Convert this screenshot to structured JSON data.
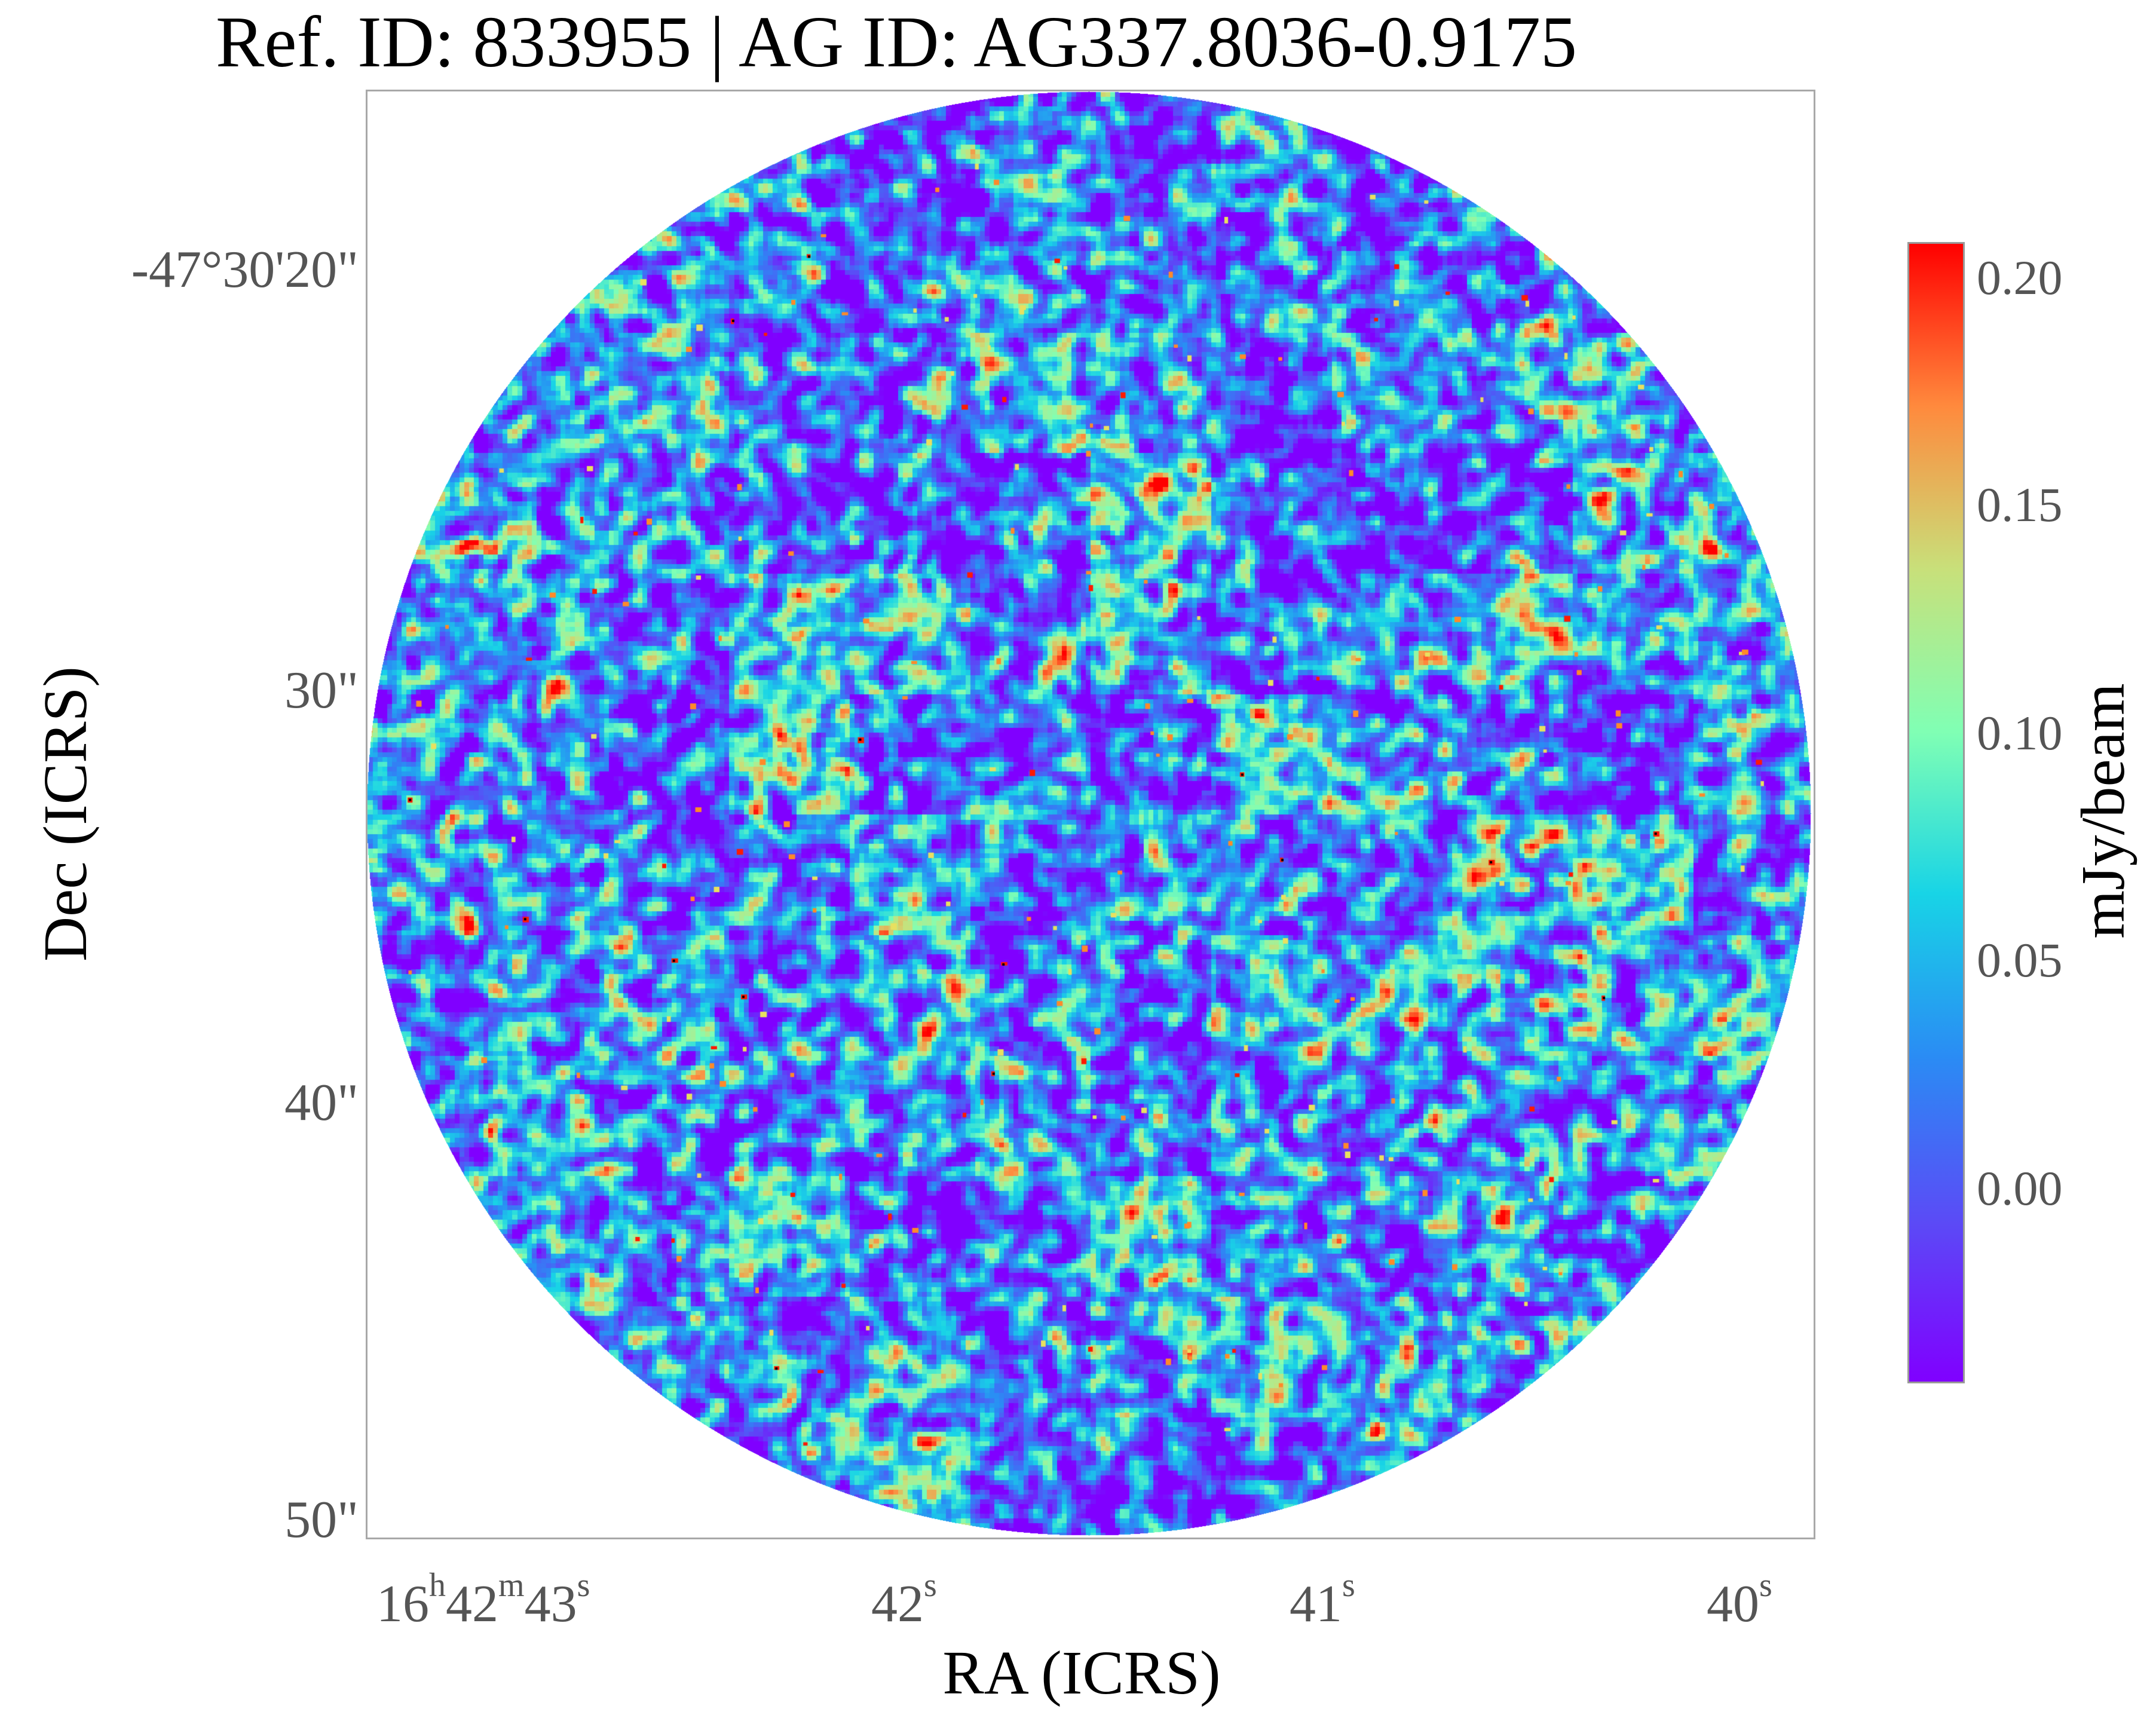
{
  "title": "Ref. ID: 833955 | AG ID: AG337.8036-0.9175",
  "x_axis": {
    "label": "RA (ICRS)",
    "ticks": [
      {
        "h": "16",
        "h_unit": "h",
        "m": "42",
        "m_unit": "m",
        "s": "43",
        "s_unit": "s"
      },
      {
        "s": "42",
        "s_unit": "s"
      },
      {
        "s": "41",
        "s_unit": "s"
      },
      {
        "s": "40",
        "s_unit": "s"
      }
    ]
  },
  "y_axis": {
    "label": "Dec (ICRS)",
    "ticks": [
      "-47°30'20\"",
      "30\"",
      "40\"",
      "50\""
    ]
  },
  "colorbar": {
    "label": "mJy/beam",
    "ticks": [
      "0.20",
      "0.15",
      "0.10",
      "0.05",
      "0.00"
    ],
    "colormap": "rainbow",
    "colors": [
      "#ff0000",
      "#ff8a3d",
      "#c8e07a",
      "#80ffb4",
      "#18d4e6",
      "#2a8cf4",
      "#5a4cf6",
      "#8000ff"
    ]
  },
  "image": {
    "description_shape": "circular",
    "noise_dominant_color": "#7a1cfc"
  }
}
